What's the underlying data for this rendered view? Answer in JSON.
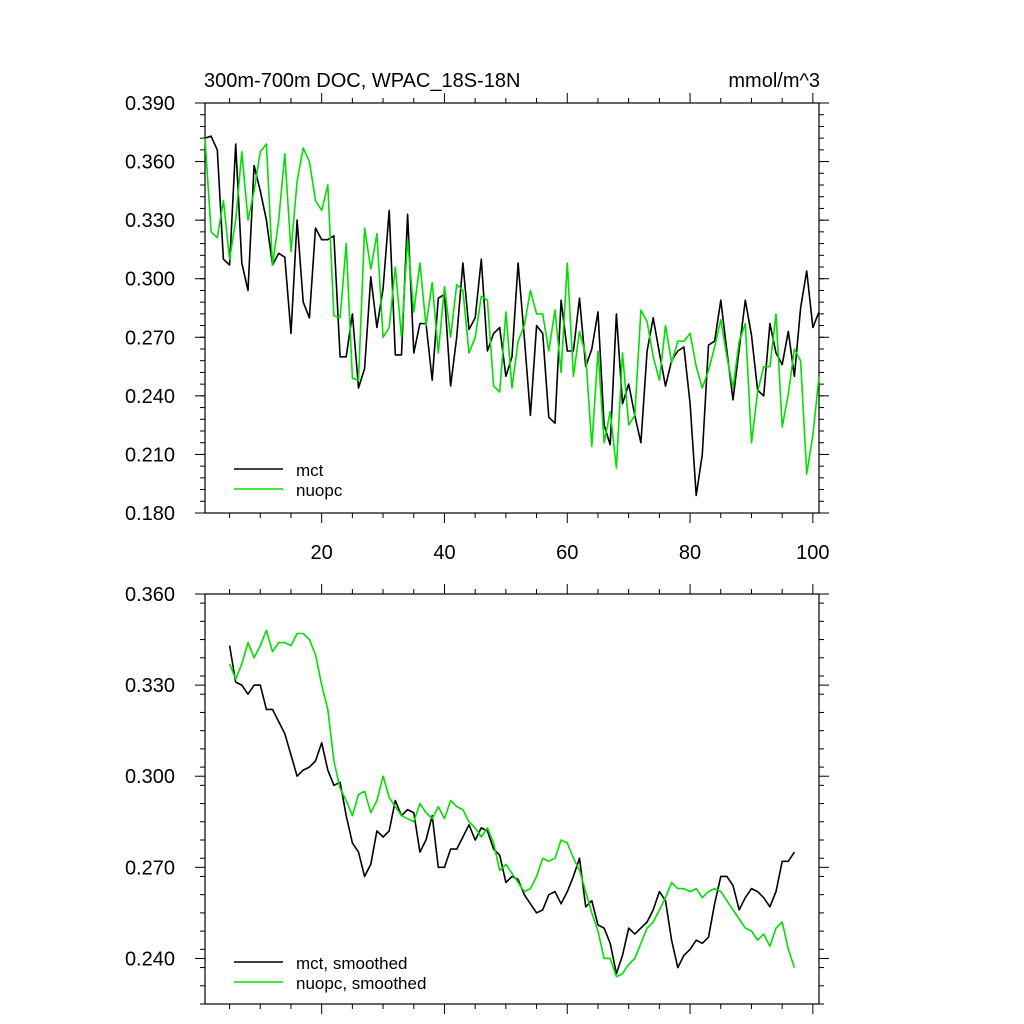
{
  "chart_data": [
    {
      "type": "line",
      "title": "300m-700m DOC, WPAC_18S-18N",
      "units": "mmol/m^3",
      "xlim": [
        1,
        101
      ],
      "ylim": [
        0.18,
        0.39
      ],
      "xticks": [
        "20",
        "40",
        "60",
        "80",
        "100"
      ],
      "yticks": [
        "0.180",
        "0.210",
        "0.240",
        "0.270",
        "0.300",
        "0.330",
        "0.360",
        "0.390"
      ],
      "legend_position": "bottom-left",
      "grid": false,
      "series": [
        {
          "name": "mct",
          "color": "#000000",
          "x": [
            1,
            2,
            3,
            4,
            5,
            6,
            7,
            8,
            9,
            10,
            11,
            12,
            13,
            14,
            15,
            16,
            17,
            18,
            19,
            20,
            21,
            22,
            23,
            24,
            25,
            26,
            27,
            28,
            29,
            30,
            31,
            32,
            33,
            34,
            35,
            36,
            37,
            38,
            39,
            40,
            41,
            42,
            43,
            44,
            45,
            46,
            47,
            48,
            49,
            50,
            51,
            52,
            53,
            54,
            55,
            56,
            57,
            58,
            59,
            60,
            61,
            62,
            63,
            64,
            65,
            66,
            67,
            68,
            69,
            70,
            71,
            72,
            73,
            74,
            75,
            76,
            77,
            78,
            79,
            80,
            81,
            82,
            83,
            84,
            85,
            86,
            87,
            88,
            89,
            90,
            91,
            92,
            93,
            94,
            95,
            96,
            97,
            98,
            99,
            100,
            101
          ],
          "values": [
            0.372,
            0.373,
            0.366,
            0.31,
            0.307,
            0.369,
            0.308,
            0.294,
            0.358,
            0.345,
            0.33,
            0.307,
            0.313,
            0.311,
            0.272,
            0.33,
            0.288,
            0.28,
            0.326,
            0.32,
            0.32,
            0.322,
            0.26,
            0.26,
            0.282,
            0.244,
            0.254,
            0.301,
            0.275,
            0.295,
            0.335,
            0.261,
            0.261,
            0.333,
            0.262,
            0.277,
            0.277,
            0.248,
            0.29,
            0.292,
            0.245,
            0.27,
            0.308,
            0.274,
            0.28,
            0.31,
            0.263,
            0.272,
            0.275,
            0.25,
            0.26,
            0.308,
            0.27,
            0.23,
            0.276,
            0.272,
            0.229,
            0.226,
            0.289,
            0.263,
            0.263,
            0.29,
            0.255,
            0.264,
            0.283,
            0.225,
            0.215,
            0.282,
            0.236,
            0.246,
            0.23,
            0.216,
            0.263,
            0.28,
            0.262,
            0.245,
            0.258,
            0.263,
            0.265,
            0.236,
            0.189,
            0.21,
            0.266,
            0.268,
            0.289,
            0.263,
            0.238,
            0.264,
            0.289,
            0.271,
            0.243,
            0.24,
            0.277,
            0.262,
            0.256,
            0.273,
            0.25,
            0.285,
            0.304,
            0.275,
            0.283
          ]
        },
        {
          "name": "nuopc",
          "color": "#00e000",
          "x": [
            1,
            2,
            3,
            4,
            5,
            6,
            7,
            8,
            9,
            10,
            11,
            12,
            13,
            14,
            15,
            16,
            17,
            18,
            19,
            20,
            21,
            22,
            23,
            24,
            25,
            26,
            27,
            28,
            29,
            30,
            31,
            32,
            33,
            34,
            35,
            36,
            37,
            38,
            39,
            40,
            41,
            42,
            43,
            44,
            45,
            46,
            47,
            48,
            49,
            50,
            51,
            52,
            53,
            54,
            55,
            56,
            57,
            58,
            59,
            60,
            61,
            62,
            63,
            64,
            65,
            66,
            67,
            68,
            69,
            70,
            71,
            72,
            73,
            74,
            75,
            76,
            77,
            78,
            79,
            80,
            81,
            82,
            83,
            84,
            85,
            86,
            87,
            88,
            89,
            90,
            91,
            92,
            93,
            94,
            95,
            96,
            97,
            98,
            99,
            100,
            101
          ],
          "values": [
            0.372,
            0.324,
            0.321,
            0.34,
            0.31,
            0.33,
            0.365,
            0.33,
            0.345,
            0.365,
            0.369,
            0.307,
            0.33,
            0.364,
            0.314,
            0.35,
            0.367,
            0.36,
            0.34,
            0.335,
            0.348,
            0.281,
            0.28,
            0.318,
            0.249,
            0.248,
            0.326,
            0.305,
            0.323,
            0.27,
            0.275,
            0.306,
            0.27,
            0.32,
            0.283,
            0.308,
            0.276,
            0.298,
            0.262,
            0.296,
            0.27,
            0.297,
            0.294,
            0.262,
            0.27,
            0.291,
            0.289,
            0.245,
            0.242,
            0.283,
            0.244,
            0.268,
            0.276,
            0.294,
            0.282,
            0.282,
            0.263,
            0.284,
            0.252,
            0.308,
            0.25,
            0.273,
            0.261,
            0.214,
            0.263,
            0.216,
            0.232,
            0.203,
            0.262,
            0.225,
            0.23,
            0.284,
            0.278,
            0.26,
            0.248,
            0.276,
            0.257,
            0.268,
            0.268,
            0.272,
            0.255,
            0.244,
            0.253,
            0.265,
            0.279,
            0.26,
            0.244,
            0.268,
            0.277,
            0.216,
            0.242,
            0.255,
            0.255,
            0.282,
            0.224,
            0.241,
            0.264,
            0.258,
            0.2,
            0.22,
            0.25
          ]
        }
      ]
    },
    {
      "type": "line",
      "xlim": [
        1,
        101
      ],
      "ylim": [
        0.225,
        0.36
      ],
      "yticks": [
        "0.240",
        "0.270",
        "0.300",
        "0.330",
        "0.360"
      ],
      "legend_position": "bottom-left",
      "grid": false,
      "series": [
        {
          "name": "mct, smoothed",
          "color": "#000000",
          "x": [
            5,
            6,
            7,
            8,
            9,
            10,
            11,
            12,
            13,
            14,
            15,
            16,
            17,
            18,
            19,
            20,
            21,
            22,
            23,
            24,
            25,
            26,
            27,
            28,
            29,
            30,
            31,
            32,
            33,
            34,
            35,
            36,
            37,
            38,
            39,
            40,
            41,
            42,
            43,
            44,
            45,
            46,
            47,
            48,
            49,
            50,
            51,
            52,
            53,
            54,
            55,
            56,
            57,
            58,
            59,
            60,
            61,
            62,
            63,
            64,
            65,
            66,
            67,
            68,
            69,
            70,
            71,
            72,
            73,
            74,
            75,
            76,
            77,
            78,
            79,
            80,
            81,
            82,
            83,
            84,
            85,
            86,
            87,
            88,
            89,
            90,
            91,
            92,
            93,
            94,
            95,
            96,
            97
          ],
          "values": [
            0.343,
            0.331,
            0.33,
            0.327,
            0.33,
            0.33,
            0.322,
            0.322,
            0.318,
            0.314,
            0.307,
            0.3,
            0.302,
            0.303,
            0.305,
            0.311,
            0.302,
            0.297,
            0.298,
            0.287,
            0.278,
            0.275,
            0.267,
            0.271,
            0.282,
            0.28,
            0.282,
            0.292,
            0.287,
            0.289,
            0.288,
            0.275,
            0.279,
            0.287,
            0.27,
            0.27,
            0.276,
            0.276,
            0.28,
            0.284,
            0.279,
            0.283,
            0.282,
            0.276,
            0.274,
            0.265,
            0.267,
            0.266,
            0.261,
            0.258,
            0.255,
            0.256,
            0.261,
            0.262,
            0.258,
            0.262,
            0.267,
            0.273,
            0.257,
            0.259,
            0.251,
            0.25,
            0.245,
            0.235,
            0.241,
            0.25,
            0.248,
            0.25,
            0.252,
            0.256,
            0.262,
            0.259,
            0.246,
            0.237,
            0.241,
            0.243,
            0.246,
            0.245,
            0.247,
            0.258,
            0.267,
            0.267,
            0.264,
            0.256,
            0.26,
            0.263,
            0.262,
            0.26,
            0.257,
            0.262,
            0.272,
            0.272,
            0.275
          ]
        },
        {
          "name": "nuopc, smoothed",
          "color": "#00e000",
          "x": [
            5,
            6,
            7,
            8,
            9,
            10,
            11,
            12,
            13,
            14,
            15,
            16,
            17,
            18,
            19,
            20,
            21,
            22,
            23,
            24,
            25,
            26,
            27,
            28,
            29,
            30,
            31,
            32,
            33,
            34,
            35,
            36,
            37,
            38,
            39,
            40,
            41,
            42,
            43,
            44,
            45,
            46,
            47,
            48,
            49,
            50,
            51,
            52,
            53,
            54,
            55,
            56,
            57,
            58,
            59,
            60,
            61,
            62,
            63,
            64,
            65,
            66,
            67,
            68,
            69,
            70,
            71,
            72,
            73,
            74,
            75,
            76,
            77,
            78,
            79,
            80,
            81,
            82,
            83,
            84,
            85,
            86,
            87,
            88,
            89,
            90,
            91,
            92,
            93,
            94,
            95,
            96,
            97
          ],
          "values": [
            0.337,
            0.332,
            0.337,
            0.344,
            0.339,
            0.343,
            0.348,
            0.341,
            0.344,
            0.344,
            0.343,
            0.347,
            0.347,
            0.345,
            0.34,
            0.33,
            0.322,
            0.305,
            0.296,
            0.292,
            0.287,
            0.294,
            0.295,
            0.288,
            0.292,
            0.3,
            0.293,
            0.29,
            0.287,
            0.286,
            0.285,
            0.291,
            0.288,
            0.286,
            0.29,
            0.286,
            0.292,
            0.29,
            0.289,
            0.285,
            0.283,
            0.28,
            0.283,
            0.278,
            0.269,
            0.271,
            0.268,
            0.265,
            0.262,
            0.263,
            0.267,
            0.273,
            0.272,
            0.273,
            0.279,
            0.278,
            0.273,
            0.269,
            0.262,
            0.255,
            0.249,
            0.24,
            0.24,
            0.234,
            0.235,
            0.238,
            0.24,
            0.245,
            0.25,
            0.252,
            0.256,
            0.26,
            0.265,
            0.263,
            0.263,
            0.262,
            0.263,
            0.26,
            0.262,
            0.263,
            0.262,
            0.259,
            0.256,
            0.253,
            0.25,
            0.249,
            0.246,
            0.248,
            0.244,
            0.25,
            0.252,
            0.243,
            0.237
          ]
        }
      ]
    }
  ]
}
